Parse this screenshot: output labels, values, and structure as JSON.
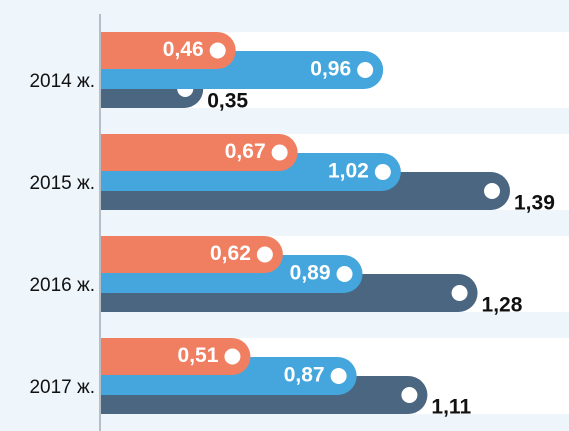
{
  "chart_data": {
    "type": "bar",
    "orientation": "horizontal",
    "categories": [
      "2014 ж.",
      "2015 ж.",
      "2016 ж.",
      "2017 ж."
    ],
    "series": [
      {
        "color": "#f07f62",
        "values": [
          0.46,
          0.67,
          0.62,
          0.51
        ],
        "value_labels": [
          "0,46",
          "0,67",
          "0,62",
          "0,51"
        ]
      },
      {
        "color": "#44a6dc",
        "values": [
          0.96,
          1.02,
          0.89,
          0.87
        ],
        "value_labels": [
          "0,96",
          "1,02",
          "0,89",
          "0,87"
        ]
      },
      {
        "color": "#4a6680",
        "values": [
          0.35,
          1.39,
          1.28,
          1.11
        ],
        "value_labels": [
          "0,35",
          "1,39",
          "1,28",
          "1,11"
        ]
      }
    ],
    "xlim": [
      0,
      1.59
    ]
  }
}
